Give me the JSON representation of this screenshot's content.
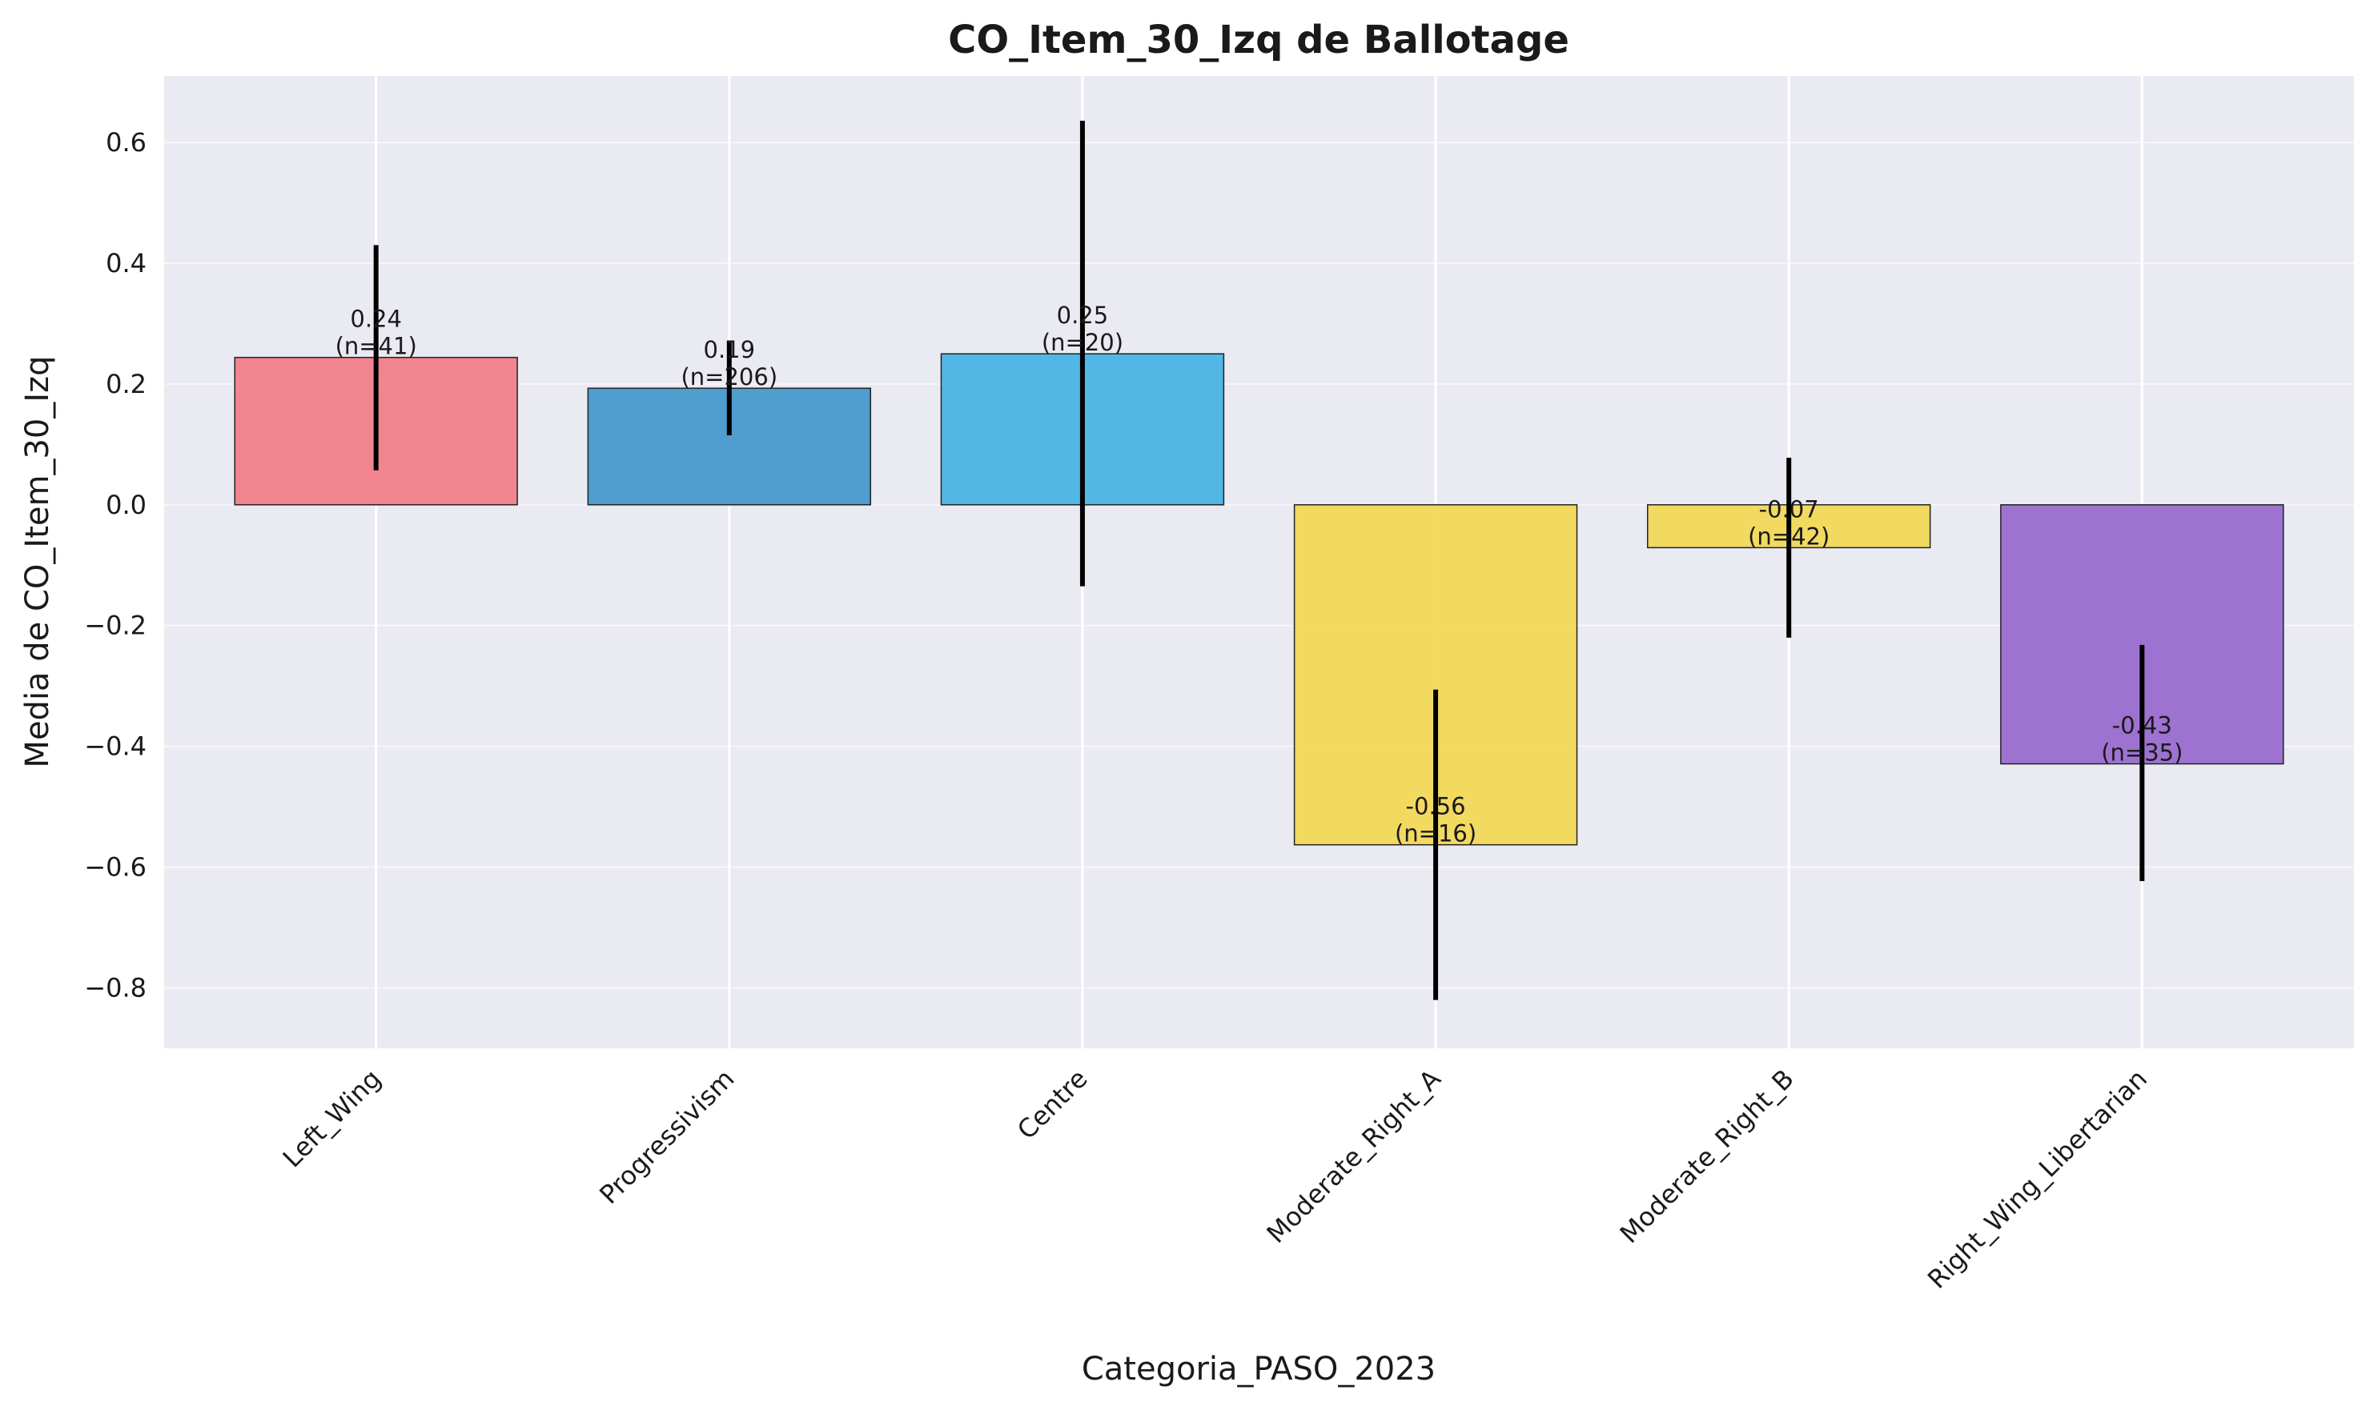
{
  "chart_data": {
    "type": "bar",
    "title": "CO_Item_30_Izq de Ballotage",
    "xlabel": "Categoria_PASO_2023",
    "ylabel": "Media de CO_Item_30_Izq",
    "categories": [
      "Left_Wing",
      "Progressivism",
      "Centre",
      "Moderate_Right_A",
      "Moderate_Right_B",
      "Right_Wing_Libertarian"
    ],
    "values": [
      0.244,
      0.193,
      0.25,
      -0.563,
      -0.071,
      -0.429
    ],
    "n": [
      41,
      206,
      20,
      16,
      42,
      35
    ],
    "value_labels": [
      "0.24",
      "0.19",
      "0.25",
      "-0.56",
      "-0.07",
      "-0.43"
    ],
    "n_labels": [
      "(n=41)",
      "(n=206)",
      "(n=20)",
      "(n=16)",
      "(n=42)",
      "(n=35)"
    ],
    "error_low": [
      0.057,
      0.115,
      -0.135,
      -0.82,
      -0.22,
      -0.623
    ],
    "error_high": [
      0.43,
      0.272,
      0.636,
      -0.306,
      0.078,
      -0.232
    ],
    "colors": [
      "#f07f89",
      "#4899cd",
      "#4ab4e3",
      "#f2d857",
      "#f2d857",
      "#9a6ccd"
    ],
    "ylim": [
      -0.9,
      0.71
    ],
    "yticks": [
      -0.8,
      -0.6,
      -0.4,
      -0.2,
      0.0,
      0.2,
      0.4,
      0.6
    ],
    "ytick_labels": [
      "−0.8",
      "−0.6",
      "−0.4",
      "−0.2",
      "0.0",
      "0.2",
      "0.4",
      "0.6"
    ],
    "grid": true,
    "background": "#eaeaf2"
  }
}
